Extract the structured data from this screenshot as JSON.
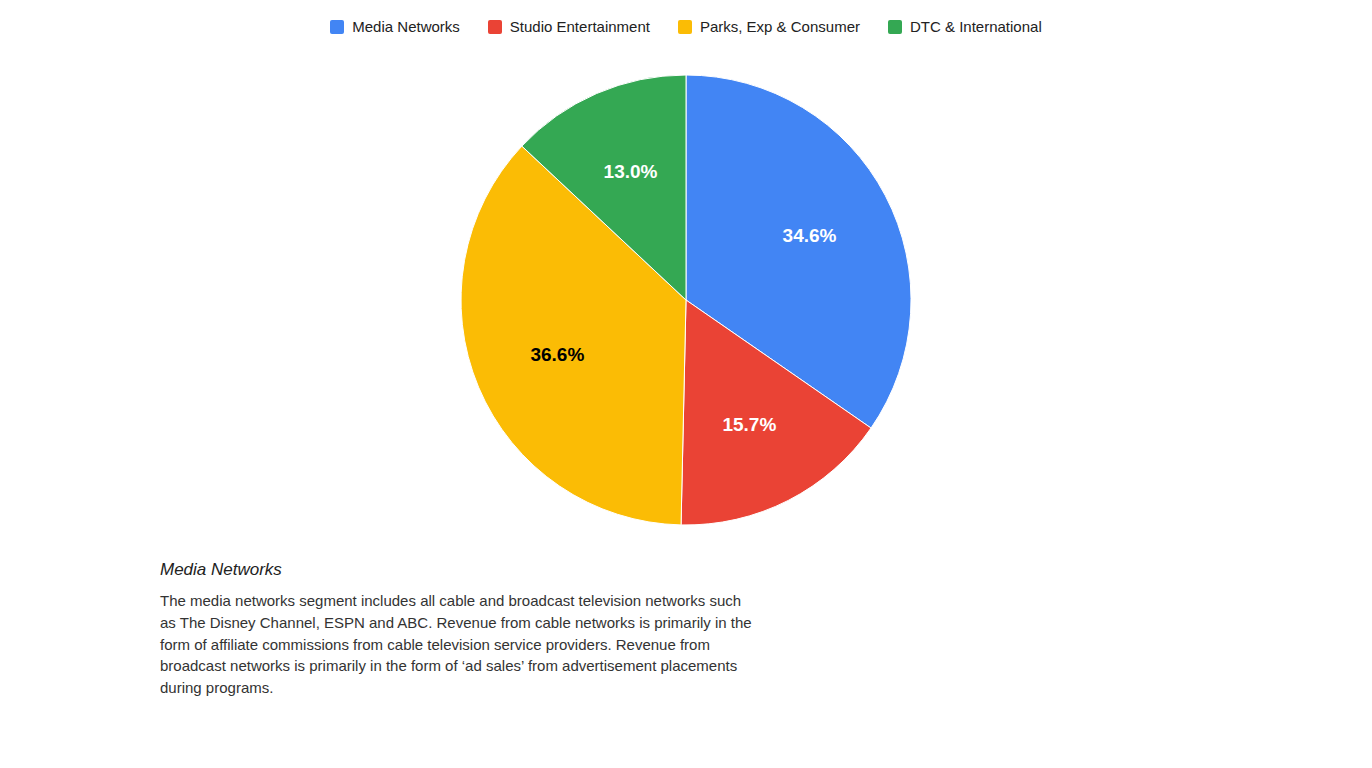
{
  "chart_data": {
    "type": "pie",
    "categories": [
      "Media Networks",
      "Studio Entertainment",
      "Parks, Exp & Consumer",
      "DTC & International"
    ],
    "values": [
      34.6,
      15.7,
      36.6,
      13.0
    ],
    "value_labels": [
      "34.6%",
      "15.7%",
      "36.6%",
      "13.0%"
    ],
    "colors": [
      "#4285F4",
      "#EA4335",
      "#FBBC05",
      "#34A853"
    ],
    "data_labels": true,
    "legend": "top",
    "subtitle": "Media Networks",
    "annotations": [
      "The media networks segment includes all cable and broadcast television networks such\nas The Disney Channel, ESPN and ABC. Revenue from cable networks is primarily in the\nform of affiliate commissions from cable television service providers. Revenue from\nbroadcast networks is primarily in the form of ‘ad sales’ from advertisement placements\nduring programs."
    ]
  }
}
